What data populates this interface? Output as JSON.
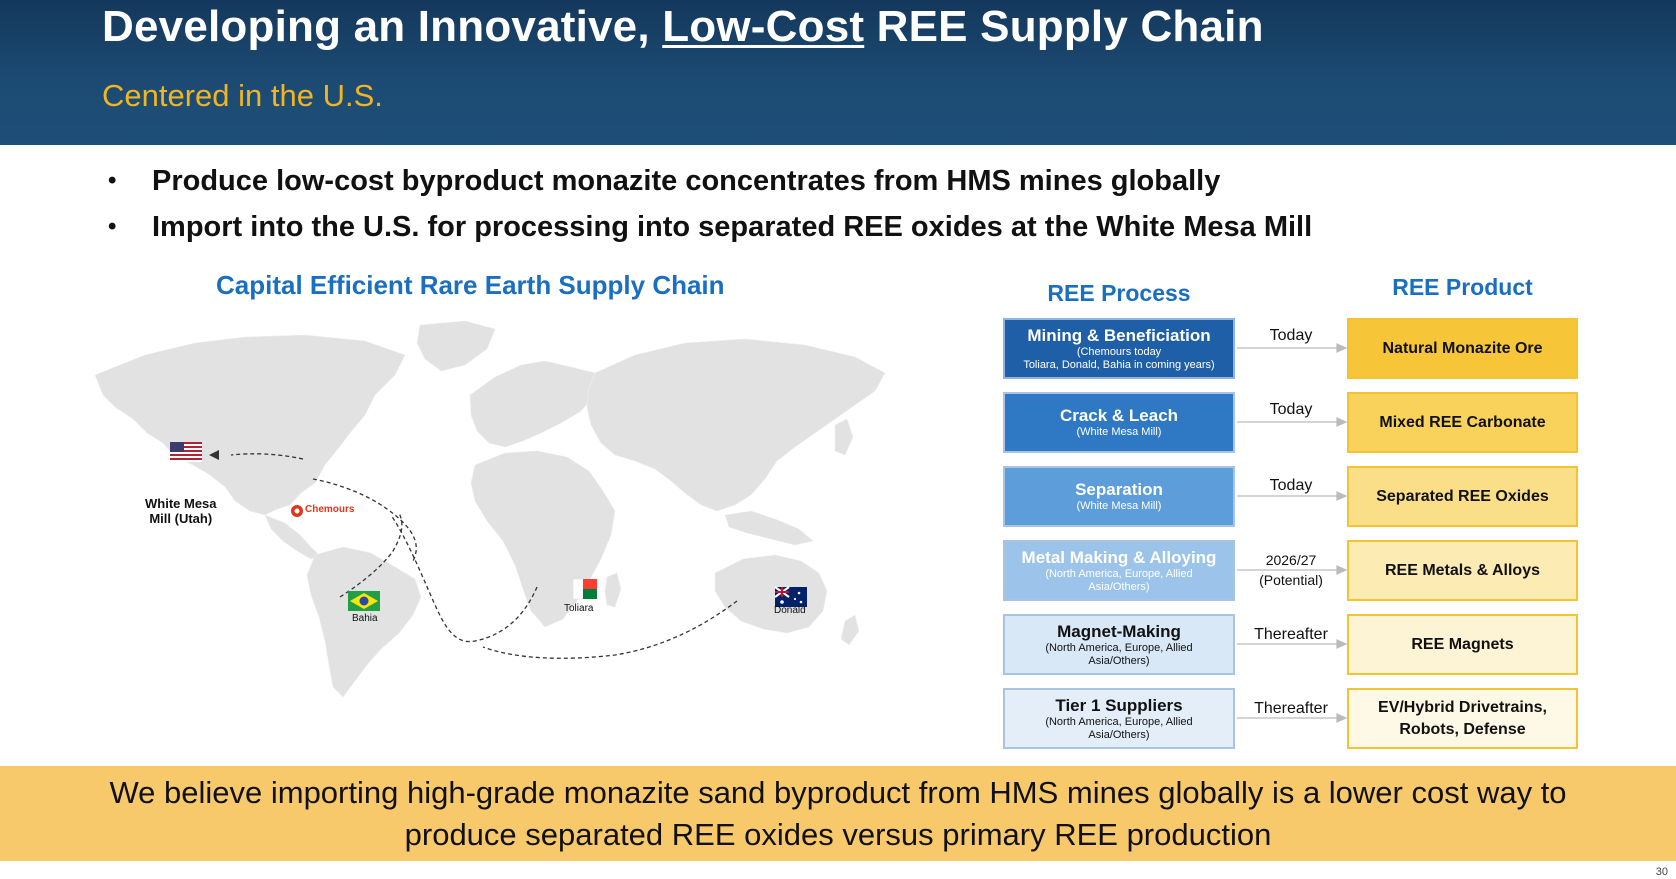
{
  "header": {
    "title_pre": "Developing an Innovative, ",
    "title_underlined": "Low-Cost",
    "title_post": " REE Supply Chain",
    "subtitle": "Centered in the U.S."
  },
  "bullets": [
    "Produce low-cost byproduct monazite concentrates from HMS mines globally",
    "Import into the U.S. for processing into separated REE oxides at the White Mesa Mill"
  ],
  "map": {
    "title": "Capital Efficient Rare Earth Supply Chain",
    "labels": {
      "white_mesa": "White Mesa",
      "white_mesa_2": "Mill (Utah)",
      "chemours": "Chemours",
      "bahia": "Bahia",
      "toliara": "Toliara",
      "donald": "Donald"
    }
  },
  "process_header": "REE Process",
  "product_header": "REE Product",
  "rows": [
    {
      "process": "Mining & Beneficiation",
      "process_sub": "(Chemours today",
      "process_sub2": "Toliara, Donald, Bahia in coming years)",
      "arrow": "Today",
      "arrow2": "",
      "product": "Natural Monazite Ore",
      "process_color": "#1f5fa7",
      "product_color": "#f6c638"
    },
    {
      "process": "Crack & Leach",
      "process_sub": "(White Mesa Mill)",
      "process_sub2": "",
      "arrow": "Today",
      "arrow2": "",
      "product": "Mixed REE Carbonate",
      "process_color": "#2e78c4",
      "product_color": "#f8d25b"
    },
    {
      "process": "Separation",
      "process_sub": "(White Mesa Mill)",
      "process_sub2": "",
      "arrow": "Today",
      "arrow2": "",
      "product": "Separated REE Oxides",
      "process_color": "#5d9dd9",
      "product_color": "#fadf88"
    },
    {
      "process": "Metal Making & Alloying",
      "process_sub": "(North America, Europe, Allied",
      "process_sub2": "Asia/Others)",
      "arrow": "2026/27",
      "arrow2": "(Potential)",
      "product": "REE Metals & Alloys",
      "process_color": "#9cc4ea",
      "product_color": "#fcebb3"
    },
    {
      "process": "Magnet-Making",
      "process_sub": "(North America, Europe, Allied",
      "process_sub2": "Asia/Others)",
      "arrow": "Thereafter",
      "arrow2": "",
      "product": "REE Magnets",
      "process_color": "#d8e8f7",
      "product_color": "#fdf4d6"
    },
    {
      "process": "Tier 1 Suppliers",
      "process_sub": "(North America, Europe, Allied",
      "process_sub2": "Asia/Others)",
      "arrow": "Thereafter",
      "arrow2": "",
      "product": "EV/Hybrid Drivetrains, Robots, Defense",
      "process_color": "#e3eef9",
      "product_color": "#fef8e6"
    }
  ],
  "footer": "We believe importing high-grade monazite sand byproduct from HMS mines globally is a lower cost way to produce separated REE oxides versus primary REE production",
  "page_number": "30"
}
